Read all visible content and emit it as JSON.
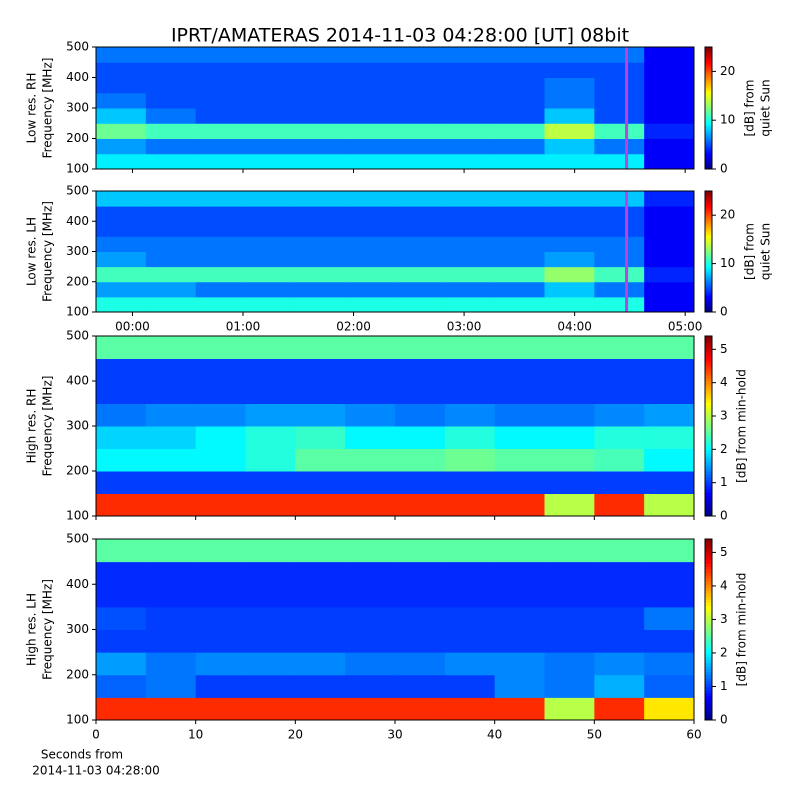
{
  "chart_data": [
    {
      "type": "heatmap",
      "title": "IPRT/AMATERAS 2014-11-03 04:28:00 [UT]   08bit",
      "ylabel": [
        "Low res. RH",
        "Frequency [MHz]"
      ],
      "colorbar_label": [
        "[dB] from",
        "quiet Sun"
      ],
      "colormap": "jet",
      "xlim": [
        -0.33,
        5.08
      ],
      "ylim": [
        100,
        500
      ],
      "yticks": [
        100,
        200,
        300,
        400,
        500
      ],
      "xticks": [
        0,
        1,
        2,
        3,
        4,
        5
      ],
      "clim": [
        0,
        25
      ],
      "cticks": [
        0,
        10,
        20
      ],
      "vline_x": 4.47,
      "vline_color": "#c040e0",
      "z": [
        [
          9,
          9,
          9,
          9,
          9,
          9,
          9,
          9,
          9,
          9,
          9,
          3
        ],
        [
          7,
          6,
          6,
          6,
          6,
          6,
          6,
          6,
          6,
          8,
          6,
          3
        ],
        [
          12,
          11,
          11,
          11,
          11,
          11,
          11,
          11,
          11,
          14,
          11,
          4
        ],
        [
          8,
          6,
          5,
          5,
          5,
          5,
          5,
          5,
          5,
          8,
          5,
          3
        ],
        [
          6,
          5,
          5,
          5,
          5,
          5,
          5,
          5,
          5,
          6,
          5,
          3
        ],
        [
          5,
          5,
          5,
          5,
          5,
          5,
          5,
          5,
          5,
          6,
          5,
          3
        ],
        [
          5,
          5,
          5,
          5,
          5,
          5,
          5,
          5,
          5,
          5,
          5,
          3
        ],
        [
          6,
          6,
          6,
          6,
          6,
          6,
          6,
          6,
          6,
          6,
          6,
          3
        ]
      ]
    },
    {
      "type": "heatmap",
      "ylabel": [
        "Low res. LH",
        "Frequency [MHz]"
      ],
      "colorbar_label": [
        "[dB] from",
        "quiet Sun"
      ],
      "colormap": "jet",
      "xlim": [
        -0.33,
        5.08
      ],
      "ylim": [
        100,
        500
      ],
      "yticks": [
        100,
        200,
        300,
        400,
        500
      ],
      "xticks": [
        {
          "value": 0,
          "label": "00:00"
        },
        {
          "value": 1,
          "label": "01:00"
        },
        {
          "value": 2,
          "label": "02:00"
        },
        {
          "value": 3,
          "label": "03:00"
        },
        {
          "value": 4,
          "label": "04:00"
        },
        {
          "value": 5,
          "label": "05:00"
        }
      ],
      "clim": [
        0,
        25
      ],
      "cticks": [
        0,
        10,
        20
      ],
      "vline_x": 4.47,
      "vline_color": "#c040e0",
      "z": [
        [
          10,
          10,
          10,
          10,
          10,
          10,
          10,
          10,
          10,
          10,
          10,
          3
        ],
        [
          7,
          7,
          6,
          6,
          6,
          6,
          6,
          6,
          6,
          8,
          6,
          3
        ],
        [
          11,
          11,
          11,
          11,
          11,
          11,
          11,
          11,
          11,
          13,
          11,
          4
        ],
        [
          7,
          6,
          6,
          6,
          6,
          6,
          6,
          6,
          6,
          7,
          6,
          3
        ],
        [
          6,
          6,
          6,
          6,
          6,
          6,
          6,
          6,
          6,
          6,
          6,
          3
        ],
        [
          5,
          5,
          5,
          5,
          5,
          5,
          5,
          5,
          5,
          5,
          5,
          3
        ],
        [
          5,
          5,
          5,
          5,
          5,
          5,
          5,
          5,
          5,
          5,
          5,
          3
        ],
        [
          8,
          8,
          8,
          8,
          8,
          8,
          8,
          8,
          8,
          8,
          8,
          4
        ]
      ]
    },
    {
      "type": "heatmap",
      "ylabel": [
        "High res. RH",
        "Frequency [MHz]"
      ],
      "colorbar_label": [
        "[dB] from min-hold"
      ],
      "colormap": "jet",
      "xlim": [
        0,
        60
      ],
      "ylim": [
        100,
        500
      ],
      "yticks": [
        100,
        200,
        300,
        400,
        500
      ],
      "xticks": [
        0,
        10,
        20,
        30,
        40,
        50,
        60
      ],
      "clim": [
        0,
        5.4
      ],
      "cticks": [
        0,
        1,
        2,
        3,
        4,
        5
      ],
      "z": [
        [
          4.5,
          4.5,
          4.5,
          4.5,
          4.5,
          4.5,
          4.5,
          4.5,
          4.5,
          3,
          4.5,
          3
        ],
        [
          1,
          1,
          1,
          1,
          1,
          1,
          1,
          1,
          1,
          1,
          1,
          1
        ],
        [
          2,
          2,
          2,
          2.2,
          2.5,
          2.5,
          2.5,
          2.6,
          2.5,
          2.5,
          2.4,
          2
        ],
        [
          1.8,
          1.8,
          2,
          2.2,
          2.3,
          2,
          2,
          2.2,
          2,
          2,
          2.2,
          2.2
        ],
        [
          1.3,
          1.4,
          1.4,
          1.5,
          1.5,
          1.4,
          1.3,
          1.4,
          1.3,
          1.3,
          1.4,
          1.5
        ],
        [
          1,
          1,
          1,
          1,
          1,
          1,
          1,
          1,
          1,
          1,
          1,
          1
        ],
        [
          1,
          1,
          1,
          1,
          1,
          1,
          1,
          1,
          1,
          1,
          1,
          1
        ],
        [
          2.5,
          2.5,
          2.5,
          2.5,
          2.5,
          2.5,
          2.5,
          2.5,
          2.5,
          2.5,
          2.5,
          2.5
        ]
      ]
    },
    {
      "type": "heatmap",
      "ylabel": [
        "High res. LH",
        "Frequency [MHz]"
      ],
      "colorbar_label": [
        "[dB] from min-hold"
      ],
      "xlabel": [
        "Seconds from",
        "2014-11-03 04:28:00"
      ],
      "colormap": "jet",
      "xlim": [
        0,
        60
      ],
      "ylim": [
        100,
        500
      ],
      "yticks": [
        100,
        200,
        300,
        400,
        500
      ],
      "xticks": [
        0,
        10,
        20,
        30,
        40,
        50,
        60
      ],
      "clim": [
        0,
        5.4
      ],
      "cticks": [
        0,
        1,
        2,
        3,
        4,
        5
      ],
      "z": [
        [
          4.5,
          4.5,
          4.5,
          4.5,
          4.5,
          4.5,
          4.5,
          4.5,
          4.5,
          3,
          4.5,
          3.5
        ],
        [
          1.2,
          1.3,
          1,
          1,
          1,
          1,
          1,
          1,
          1.4,
          1.3,
          1.6,
          1.2
        ],
        [
          1.5,
          1.3,
          1.4,
          1.4,
          1.4,
          1.3,
          1.3,
          1.4,
          1.4,
          1.3,
          1.4,
          1.3
        ],
        [
          1,
          1,
          1,
          1,
          1,
          1,
          1,
          1,
          1,
          1,
          1,
          1
        ],
        [
          1.1,
          1,
          1,
          1,
          1,
          1,
          1,
          1,
          1,
          1,
          1,
          1.3
        ],
        [
          0.9,
          0.9,
          0.9,
          0.9,
          0.9,
          0.9,
          0.9,
          0.9,
          0.9,
          0.9,
          0.9,
          0.9
        ],
        [
          0.9,
          0.9,
          0.9,
          0.9,
          0.9,
          0.9,
          0.9,
          0.9,
          0.9,
          0.9,
          0.9,
          0.9
        ],
        [
          2.5,
          2.5,
          2.5,
          2.5,
          2.5,
          2.5,
          2.5,
          2.5,
          2.5,
          2.5,
          2.5,
          2.5
        ]
      ]
    }
  ]
}
